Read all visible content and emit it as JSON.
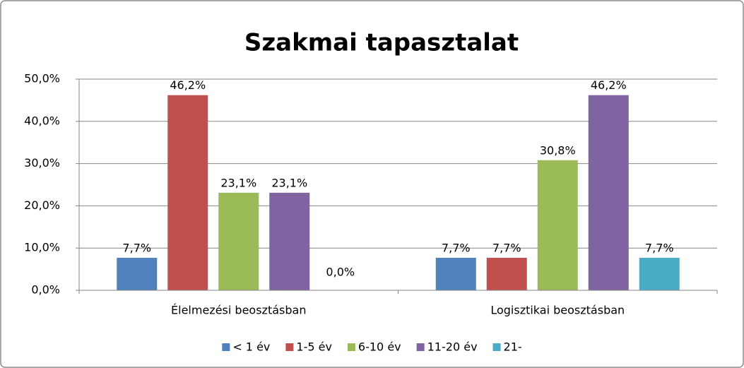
{
  "chart_data": {
    "type": "bar",
    "title": "Szakmai tapasztalat",
    "categories": [
      "Élelmezési beosztásban",
      "Logisztikai beosztásban"
    ],
    "series": [
      {
        "name": "< 1 év",
        "color": "#4f81bd",
        "values": [
          7.7,
          7.7
        ],
        "value_labels": [
          "7,7%",
          "7,7%"
        ]
      },
      {
        "name": "1-5 év",
        "color": "#c0504d",
        "values": [
          46.2,
          7.7
        ],
        "value_labels": [
          "46,2%",
          "7,7%"
        ]
      },
      {
        "name": "6-10 év",
        "color": "#9bbb59",
        "values": [
          23.1,
          30.8
        ],
        "value_labels": [
          "23,1%",
          "30,8%"
        ]
      },
      {
        "name": "11-20 év",
        "color": "#8064a2",
        "values": [
          23.1,
          46.2
        ],
        "value_labels": [
          "23,1%",
          "46,2%"
        ]
      },
      {
        "name": "21-",
        "color": "#4bacc6",
        "values": [
          0.0,
          7.7
        ],
        "value_labels": [
          "0,0%",
          "7,7%"
        ]
      }
    ],
    "ylim": [
      0,
      50
    ],
    "yticks": [
      {
        "value": 0,
        "label": "0,0%"
      },
      {
        "value": 10,
        "label": "10,0%"
      },
      {
        "value": 20,
        "label": "20,0%"
      },
      {
        "value": 30,
        "label": "30,0%"
      },
      {
        "value": 40,
        "label": "40,0%"
      },
      {
        "value": 50,
        "label": "50,0%"
      }
    ],
    "grid": true,
    "legend": "bottom"
  }
}
